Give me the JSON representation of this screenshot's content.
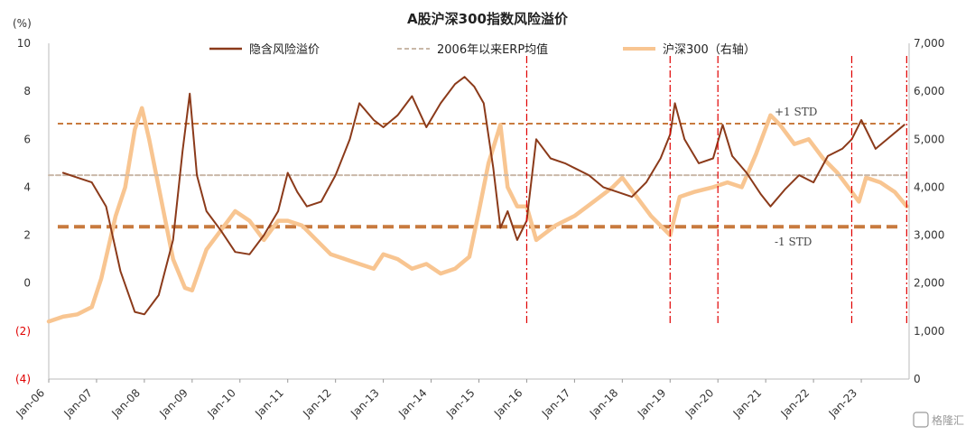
{
  "chart_data": {
    "type": "line",
    "title": "A股沪深300指数风险溢价",
    "y_left_unit": "(%)",
    "y_left_ticks": [
      "10",
      "8",
      "6",
      "4",
      "2",
      "0",
      "(2)",
      "(4)"
    ],
    "y_left_tick_values": [
      10,
      8,
      6,
      4,
      2,
      0,
      -2,
      -4
    ],
    "y_right_ticks": [
      "7,000",
      "6,000",
      "5,000",
      "4,000",
      "3,000",
      "2,000",
      "1,000",
      "0"
    ],
    "y_right_tick_values": [
      7000,
      6000,
      5000,
      4000,
      3000,
      2000,
      1000,
      0
    ],
    "ylim_left": [
      -4,
      10
    ],
    "ylim_right": [
      0,
      7000
    ],
    "x_ticks": [
      "Jan-06",
      "Jan-07",
      "Jan-08",
      "Jan-09",
      "Jan-10",
      "Jan-11",
      "Jan-12",
      "Jan-13",
      "Jan-14",
      "Jan-15",
      "Jan-16",
      "Jan-17",
      "Jan-18",
      "Jan-19",
      "Jan-20",
      "Jan-21",
      "Jan-22",
      "Jan-23"
    ],
    "legend_position": "top",
    "series": [
      {
        "name": "隐含风险溢价",
        "axis": "left",
        "color": "#8b3a1a",
        "x": [
          2006.3,
          2006.6,
          2006.9,
          2007.2,
          2007.5,
          2007.8,
          2008.0,
          2008.3,
          2008.6,
          2008.8,
          2008.95,
          2009.1,
          2009.3,
          2009.6,
          2009.9,
          2010.2,
          2010.5,
          2010.8,
          2011.0,
          2011.2,
          2011.4,
          2011.7,
          2012.0,
          2012.3,
          2012.5,
          2012.8,
          2013.0,
          2013.3,
          2013.6,
          2013.9,
          2014.2,
          2014.5,
          2014.7,
          2014.9,
          2015.1,
          2015.3,
          2015.45,
          2015.6,
          2015.8,
          2016.0,
          2016.2,
          2016.5,
          2016.8,
          2017.0,
          2017.3,
          2017.6,
          2017.9,
          2018.2,
          2018.5,
          2018.8,
          2019.0,
          2019.1,
          2019.3,
          2019.6,
          2019.9,
          2020.1,
          2020.3,
          2020.6,
          2020.9,
          2021.1,
          2021.4,
          2021.7,
          2022.0,
          2022.3,
          2022.6,
          2022.8,
          2023.0,
          2023.3,
          2023.6,
          2023.9
        ],
        "y": [
          4.6,
          4.4,
          4.2,
          3.2,
          0.5,
          -1.2,
          -1.3,
          -0.5,
          1.8,
          5.5,
          7.9,
          4.5,
          3.0,
          2.2,
          1.3,
          1.2,
          2.0,
          3.0,
          4.6,
          3.8,
          3.2,
          3.4,
          4.5,
          6.0,
          7.5,
          6.8,
          6.5,
          7.0,
          7.8,
          6.5,
          7.5,
          8.3,
          8.6,
          8.2,
          7.5,
          4.8,
          2.3,
          3.0,
          1.8,
          2.6,
          6.0,
          5.2,
          5.0,
          4.8,
          4.5,
          4.0,
          3.8,
          3.6,
          4.2,
          5.2,
          6.2,
          7.5,
          6.0,
          5.0,
          5.2,
          6.6,
          5.3,
          4.6,
          3.7,
          3.2,
          3.9,
          4.5,
          4.2,
          5.3,
          5.6,
          6.0,
          6.8,
          5.6,
          6.1,
          6.6
        ]
      },
      {
        "name": "2006年以来ERP均值",
        "axis": "left",
        "color": "#c9b8a8",
        "x": [
          2006.0,
          2023.95
        ],
        "y": [
          4.5,
          4.5
        ]
      },
      {
        "name": "沪深300（右轴）",
        "axis": "right",
        "color": "#f8c591",
        "x": [
          2006.0,
          2006.3,
          2006.6,
          2006.9,
          2007.1,
          2007.4,
          2007.6,
          2007.8,
          2007.95,
          2008.1,
          2008.3,
          2008.6,
          2008.85,
          2009.0,
          2009.3,
          2009.6,
          2009.9,
          2010.2,
          2010.5,
          2010.8,
          2011.0,
          2011.3,
          2011.6,
          2011.9,
          2012.2,
          2012.5,
          2012.8,
          2013.0,
          2013.3,
          2013.6,
          2013.9,
          2014.2,
          2014.5,
          2014.8,
          2015.0,
          2015.2,
          2015.45,
          2015.6,
          2015.8,
          2016.0,
          2016.2,
          2016.6,
          2017.0,
          2017.4,
          2017.8,
          2018.0,
          2018.3,
          2018.6,
          2018.9,
          2019.0,
          2019.2,
          2019.5,
          2019.9,
          2020.2,
          2020.5,
          2020.8,
          2021.1,
          2021.3,
          2021.6,
          2021.9,
          2022.2,
          2022.5,
          2022.8,
          2022.95,
          2023.1,
          2023.4,
          2023.7,
          2023.95
        ],
        "y": [
          1200,
          1300,
          1350,
          1500,
          2100,
          3400,
          4000,
          5200,
          5650,
          5000,
          4000,
          2500,
          1900,
          1850,
          2700,
          3100,
          3500,
          3300,
          2900,
          3300,
          3300,
          3200,
          2900,
          2600,
          2500,
          2400,
          2300,
          2600,
          2500,
          2300,
          2400,
          2200,
          2300,
          2550,
          3500,
          4500,
          5300,
          4000,
          3600,
          3600,
          2900,
          3200,
          3400,
          3700,
          4000,
          4200,
          3800,
          3400,
          3100,
          3000,
          3800,
          3900,
          4000,
          4100,
          4000,
          4700,
          5500,
          5300,
          4900,
          5000,
          4600,
          4300,
          3900,
          3700,
          4200,
          4100,
          3900,
          3600
        ]
      }
    ],
    "reference_lines": [
      {
        "label": "+1 STD",
        "axis": "left",
        "value": 6.65,
        "color": "#c87a3e",
        "style": "dashed",
        "width": 2
      },
      {
        "label": "-1 STD",
        "axis": "left",
        "value": 2.35,
        "color": "#c87a3e",
        "style": "dashed",
        "width": 4
      }
    ],
    "vertical_markers": {
      "color": "#e00000",
      "style": "dash-dot",
      "x": [
        2016.0,
        2019.0,
        2020.0,
        2022.8,
        2023.95
      ]
    }
  },
  "watermark": "格隆汇"
}
